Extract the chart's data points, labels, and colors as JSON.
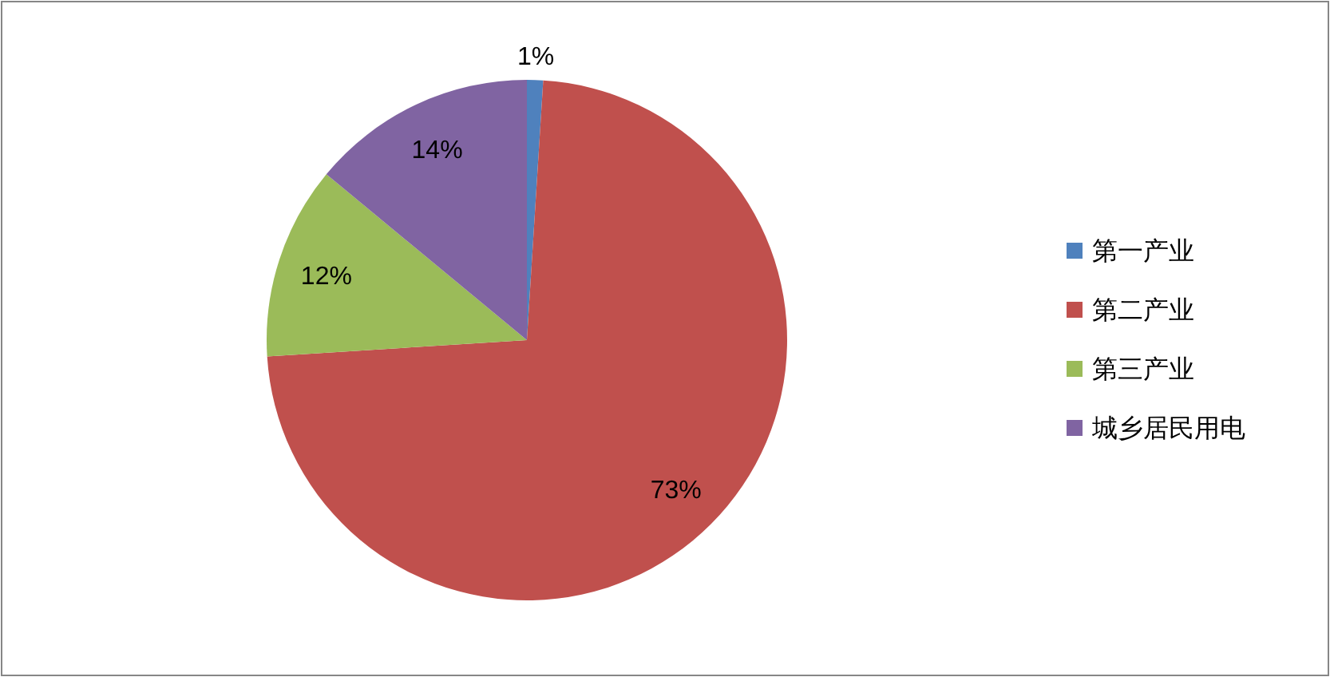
{
  "chart_data": {
    "type": "pie",
    "categories": [
      "第一产业",
      "第二产业",
      "第三产业",
      "城乡居民用电"
    ],
    "values": [
      1,
      73,
      12,
      14
    ],
    "colors": [
      "#4f81bd",
      "#c0504d",
      "#9bbb59",
      "#8064a2"
    ],
    "value_labels": [
      "1%",
      "73%",
      "12%",
      "14%"
    ],
    "legend": "right"
  }
}
